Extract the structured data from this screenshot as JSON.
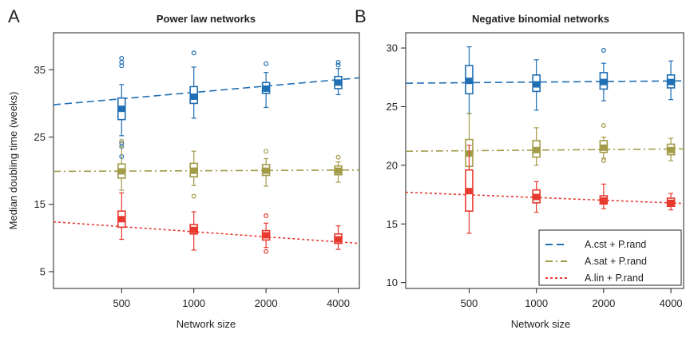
{
  "colors": {
    "cst": "#1f6fb4",
    "sat": "#a29b48",
    "lin": "#e8392f"
  },
  "chart_data": [
    {
      "type": "box",
      "panel_letter": "A",
      "title": "Power law networks",
      "xlabel": "Network size",
      "ylabel": "Median doubling time (weeks)",
      "x_scale": "log",
      "x_ticks": [
        500,
        1000,
        2000,
        4000
      ],
      "x_tick_labels": [
        "500",
        "1000",
        "2000",
        "4000"
      ],
      "xlim": [
        260,
        4900
      ],
      "ylim": [
        2.5,
        40.5
      ],
      "y_ticks": [
        5,
        15,
        25,
        35
      ],
      "y_tick_labels": [
        "5",
        "15",
        "25",
        "35"
      ],
      "series": [
        {
          "key": "cst",
          "line": "dashed",
          "fit_at_xlim": [
            29.8,
            33.8
          ],
          "boxes": [
            {
              "x": 500,
              "q1": 27.6,
              "median": 29.2,
              "q3": 30.8,
              "whisker_low": 25.2,
              "whisker_high": 32.8,
              "outliers": [
                36.7,
                36.1,
                35.6,
                24.1,
                23.6,
                22.1
              ]
            },
            {
              "x": 1000,
              "q1": 30.0,
              "median": 31.0,
              "q3": 32.5,
              "whisker_low": 27.8,
              "whisker_high": 35.4,
              "outliers": [
                37.5
              ]
            },
            {
              "x": 2000,
              "q1": 31.5,
              "median": 32.2,
              "q3": 33.1,
              "whisker_low": 29.4,
              "whisker_high": 34.6,
              "outliers": [
                35.9
              ]
            },
            {
              "x": 4000,
              "q1": 32.2,
              "median": 33.1,
              "q3": 34.0,
              "whisker_low": 31.3,
              "whisker_high": 35.2,
              "outliers": [
                36.1,
                35.7
              ]
            }
          ]
        },
        {
          "key": "sat",
          "line": "dotdash",
          "fit_at_xlim": [
            19.9,
            20.1
          ],
          "boxes": [
            {
              "x": 500,
              "q1": 18.9,
              "median": 19.9,
              "q3": 21.0,
              "whisker_low": 17.1,
              "whisker_high": 23.6,
              "outliers": [
                24.4
              ]
            },
            {
              "x": 1000,
              "q1": 19.1,
              "median": 20.0,
              "q3": 21.1,
              "whisker_low": 17.8,
              "whisker_high": 22.9,
              "outliers": [
                16.2
              ]
            },
            {
              "x": 2000,
              "q1": 19.3,
              "median": 20.0,
              "q3": 20.9,
              "whisker_low": 17.7,
              "whisker_high": 21.8,
              "outliers": [
                22.9
              ]
            },
            {
              "x": 4000,
              "q1": 19.4,
              "median": 20.0,
              "q3": 20.7,
              "whisker_low": 18.3,
              "whisker_high": 21.3,
              "outliers": [
                22.0
              ]
            }
          ]
        },
        {
          "key": "lin",
          "line": "dotted",
          "fit_at_xlim": [
            12.4,
            9.2
          ],
          "boxes": [
            {
              "x": 500,
              "q1": 11.6,
              "median": 12.8,
              "q3": 14.0,
              "whisker_low": 9.8,
              "whisker_high": 16.7,
              "outliers": []
            },
            {
              "x": 1000,
              "q1": 10.6,
              "median": 11.2,
              "q3": 12.0,
              "whisker_low": 8.2,
              "whisker_high": 13.9,
              "outliers": []
            },
            {
              "x": 2000,
              "q1": 9.7,
              "median": 10.4,
              "q3": 11.1,
              "whisker_low": 8.6,
              "whisker_high": 12.2,
              "outliers": [
                13.3,
                8.0
              ]
            },
            {
              "x": 4000,
              "q1": 9.2,
              "median": 9.8,
              "q3": 10.6,
              "whisker_low": 8.3,
              "whisker_high": 11.8,
              "outliers": []
            }
          ]
        }
      ]
    },
    {
      "type": "box",
      "panel_letter": "B",
      "title": "Negative binomial networks",
      "xlabel": "Network size",
      "ylabel": "",
      "x_scale": "log",
      "x_ticks": [
        500,
        1000,
        2000,
        4000
      ],
      "x_tick_labels": [
        "500",
        "1000",
        "2000",
        "4000"
      ],
      "xlim": [
        260,
        4560
      ],
      "ylim": [
        9.5,
        31.3
      ],
      "y_ticks": [
        10,
        15,
        20,
        25,
        30
      ],
      "y_tick_labels": [
        "10",
        "15",
        "20",
        "25",
        "30"
      ],
      "legend": {
        "position": "bottom-right",
        "entries": [
          {
            "key": "cst",
            "label": "A.cst + P.rand",
            "line": "dashed"
          },
          {
            "key": "sat",
            "label": "A.sat + P.rand",
            "line": "dotdash"
          },
          {
            "key": "lin",
            "label": "A.lin + P.rand",
            "line": "dotted"
          }
        ]
      },
      "series": [
        {
          "key": "cst",
          "line": "dashed",
          "fit_at_xlim": [
            27.0,
            27.2
          ],
          "boxes": [
            {
              "x": 500,
              "q1": 26.1,
              "median": 27.2,
              "q3": 28.5,
              "whisker_low": 24.4,
              "whisker_high": 30.1,
              "outliers": []
            },
            {
              "x": 1000,
              "q1": 26.3,
              "median": 26.9,
              "q3": 27.7,
              "whisker_low": 24.7,
              "whisker_high": 29.0,
              "outliers": []
            },
            {
              "x": 2000,
              "q1": 26.5,
              "median": 27.1,
              "q3": 27.9,
              "whisker_low": 25.5,
              "whisker_high": 28.7,
              "outliers": [
                29.8
              ]
            },
            {
              "x": 4000,
              "q1": 26.6,
              "median": 27.1,
              "q3": 27.7,
              "whisker_low": 25.6,
              "whisker_high": 28.9,
              "outliers": []
            }
          ]
        },
        {
          "key": "sat",
          "line": "dotdash",
          "fit_at_xlim": [
            21.2,
            21.4
          ],
          "boxes": [
            {
              "x": 500,
              "q1": 19.9,
              "median": 21.0,
              "q3": 22.2,
              "whisker_low": 17.2,
              "whisker_high": 24.4,
              "outliers": []
            },
            {
              "x": 1000,
              "q1": 20.7,
              "median": 21.3,
              "q3": 22.1,
              "whisker_low": 20.0,
              "whisker_high": 23.2,
              "outliers": []
            },
            {
              "x": 2000,
              "q1": 21.1,
              "median": 21.5,
              "q3": 22.1,
              "whisker_low": 20.6,
              "whisker_high": 22.4,
              "outliers": [
                23.4,
                20.4
              ]
            },
            {
              "x": 4000,
              "q1": 20.9,
              "median": 21.3,
              "q3": 21.8,
              "whisker_low": 20.4,
              "whisker_high": 22.3,
              "outliers": []
            }
          ]
        },
        {
          "key": "lin",
          "line": "dotted",
          "fit_at_xlim": [
            17.7,
            16.75
          ],
          "boxes": [
            {
              "x": 500,
              "q1": 16.1,
              "median": 17.8,
              "q3": 19.6,
              "whisker_low": 14.2,
              "whisker_high": 21.7,
              "outliers": []
            },
            {
              "x": 1000,
              "q1": 16.8,
              "median": 17.3,
              "q3": 17.9,
              "whisker_low": 16.0,
              "whisker_high": 18.6,
              "outliers": []
            },
            {
              "x": 2000,
              "q1": 16.7,
              "median": 17.0,
              "q3": 17.4,
              "whisker_low": 16.3,
              "whisker_high": 18.4,
              "outliers": []
            },
            {
              "x": 4000,
              "q1": 16.5,
              "median": 16.8,
              "q3": 17.2,
              "whisker_low": 16.2,
              "whisker_high": 17.6,
              "outliers": []
            }
          ]
        }
      ]
    }
  ]
}
